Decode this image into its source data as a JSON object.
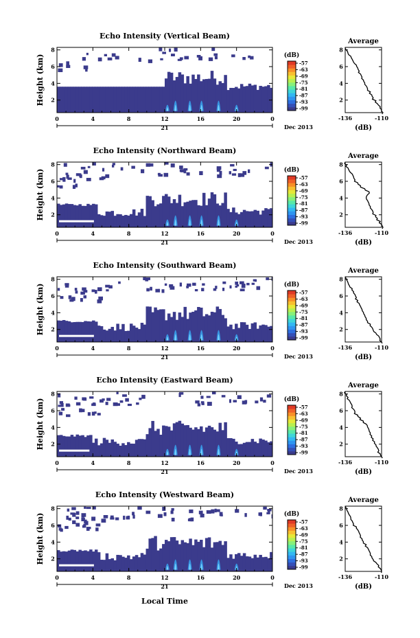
{
  "chart_data": {
    "type": "heatmap",
    "panels": [
      {
        "id": "vertical",
        "title": "Echo Intensity (Vertical Beam)",
        "avg_profile": [
          -136,
          -135,
          -134,
          -132,
          -131,
          -130,
          -128,
          -127,
          -126,
          -125,
          -124,
          -123,
          -122,
          -121,
          -120,
          -118,
          -117,
          -116,
          -114,
          -113,
          -111,
          -110,
          -109
        ]
      },
      {
        "id": "northward",
        "title": "Echo Intensity (Northward Beam)",
        "avg_profile": [
          -136,
          -135,
          -134,
          -133,
          -131,
          -130,
          -129,
          -127,
          -125,
          -122,
          -119,
          -120,
          -121,
          -120,
          -119,
          -118,
          -117,
          -116,
          -114,
          -113,
          -111,
          -110,
          -109
        ]
      },
      {
        "id": "southward",
        "title": "Echo Intensity (Southward Beam)",
        "avg_profile": [
          -136,
          -135,
          -134,
          -133,
          -131,
          -130,
          -129,
          -128,
          -127,
          -126,
          -125,
          -124,
          -123,
          -122,
          -121,
          -120,
          -118,
          -117,
          -116,
          -114,
          -112,
          -111,
          -110
        ]
      },
      {
        "id": "eastward",
        "title": "Echo Intensity (Eastward Beam)",
        "avg_profile": [
          -136,
          -135,
          -134,
          -133,
          -132,
          -131,
          -130,
          -129,
          -127,
          -125,
          -123,
          -121,
          -120,
          -119,
          -118,
          -117,
          -116,
          -115,
          -114,
          -113,
          -112,
          -111,
          -110
        ]
      },
      {
        "id": "westward",
        "title": "Echo Intensity (Westward Beam)",
        "avg_profile": [
          -136,
          -135,
          -134,
          -133,
          -132,
          -131,
          -130,
          -128,
          -127,
          -126,
          -125,
          -124,
          -123,
          -121,
          -120,
          -119,
          -118,
          -117,
          -116,
          -114,
          -112,
          -111,
          -110
        ]
      }
    ],
    "ylabel": "Height (km)",
    "yticks": [
      "2",
      "4",
      "6",
      "8"
    ],
    "ylim_km": [
      0.5,
      8.3
    ],
    "xticks": [
      "0",
      "4",
      "8",
      "12",
      "16",
      "20",
      "0"
    ],
    "xlim_hours": [
      0,
      24
    ],
    "day_label": "21",
    "month_year": "Dec 2013",
    "xlabel": "Local Time",
    "colorbar": {
      "unit": "(dB)",
      "labels": [
        "-57",
        "-63",
        "-69",
        "-75",
        "-81",
        "-87",
        "-93",
        "-99"
      ],
      "range_db": [
        -99,
        -57
      ],
      "colors": [
        "#3b3b8c",
        "#3550b8",
        "#2f6fe0",
        "#2f95f0",
        "#33b8f2",
        "#3fd6d8",
        "#58e8a8",
        "#88f07a",
        "#b8f050",
        "#e6e838",
        "#f8c030",
        "#f89028",
        "#f06028",
        "#e03a26"
      ]
    },
    "average": {
      "title": "Average",
      "xticks": [
        "-136",
        "-110"
      ],
      "xlim_db": [
        -136,
        -110
      ],
      "yticks": [
        "2",
        "4",
        "6",
        "8"
      ],
      "xlabel": "(dB)"
    },
    "colors": {
      "background": "#3b3b8c",
      "echo": "#38a4f0",
      "echo_core": "#7fd8ff"
    }
  }
}
